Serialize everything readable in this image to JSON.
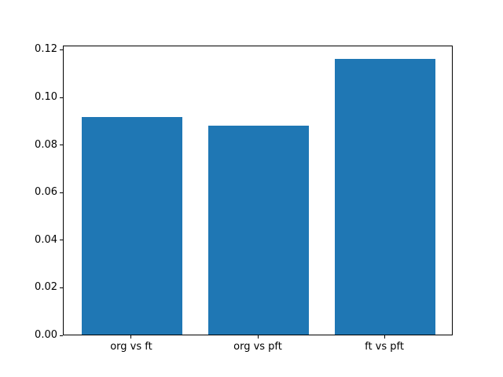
{
  "chart_data": {
    "type": "bar",
    "title": "",
    "xlabel": "",
    "ylabel": "",
    "categories": [
      "org vs ft",
      "org vs pft",
      "ft vs pft"
    ],
    "values": [
      0.0915,
      0.0879,
      0.116
    ],
    "ylim": [
      0,
      0.1218
    ],
    "yticks": [
      0.0,
      0.02,
      0.04,
      0.06,
      0.08,
      0.1,
      0.12
    ],
    "ytick_labels": [
      "0.00",
      "0.02",
      "0.04",
      "0.06",
      "0.08",
      "0.10",
      "0.12"
    ],
    "bar_color": "#1f77b4",
    "bar_width_fraction": 0.8,
    "grid": false,
    "legend": "none",
    "background_color": "#ffffff",
    "axis_color": "#000000"
  }
}
